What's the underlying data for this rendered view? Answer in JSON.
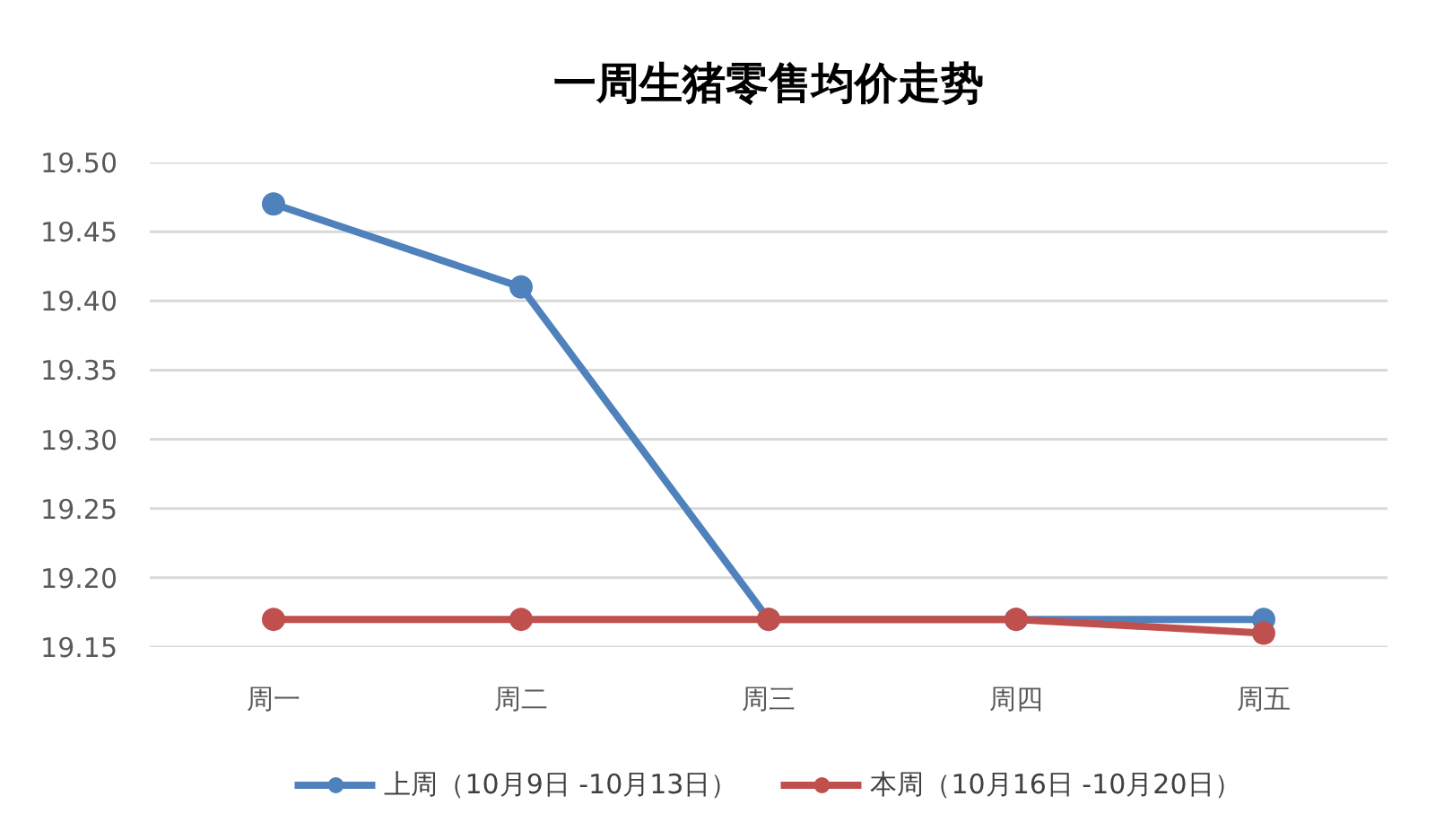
{
  "chart_data": {
    "type": "line",
    "title": "一周生猪零售均价走势",
    "categories": [
      "周一",
      "周二",
      "周三",
      "周四",
      "周五"
    ],
    "series": [
      {
        "name": "上周（10月9日 -10月13日）",
        "color": "#4f81bd",
        "values": [
          19.47,
          19.41,
          19.17,
          19.17,
          19.17
        ]
      },
      {
        "name": "本周（10月16日 -10月20日）",
        "color": "#c0504d",
        "values": [
          19.17,
          19.17,
          19.17,
          19.17,
          19.16
        ]
      }
    ],
    "ylim": [
      19.15,
      19.5
    ],
    "yticks": [
      {
        "value": 19.15,
        "label": "19.15"
      },
      {
        "value": 19.2,
        "label": "19.20"
      },
      {
        "value": 19.25,
        "label": "19.25"
      },
      {
        "value": 19.3,
        "label": "19.30"
      },
      {
        "value": 19.35,
        "label": "19.35"
      },
      {
        "value": 19.4,
        "label": "19.40"
      },
      {
        "value": 19.45,
        "label": "19.45"
      },
      {
        "value": 19.5,
        "label": "19.50"
      }
    ],
    "grid": "y",
    "legend": "bottom",
    "marker": "circle",
    "line_style": "solid"
  }
}
